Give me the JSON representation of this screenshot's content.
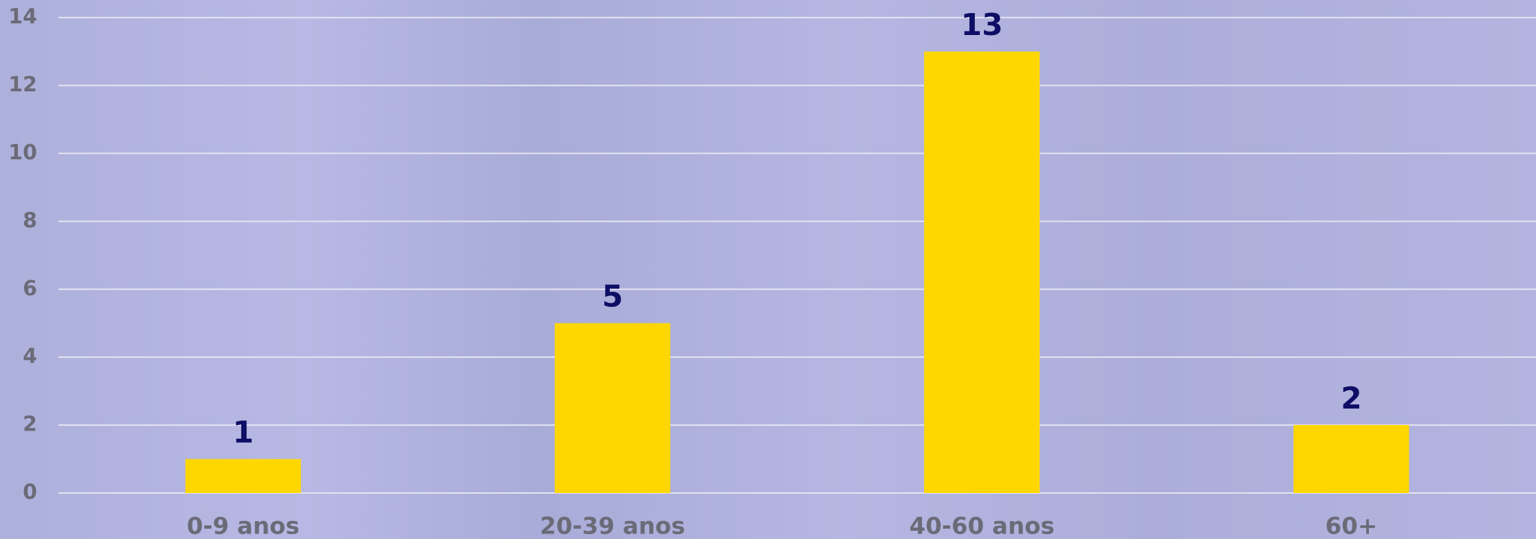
{
  "chart_data": {
    "type": "bar",
    "categories": [
      "0-9 anos",
      "20-39 anos",
      "40-60 anos",
      "60+"
    ],
    "values": [
      1,
      5,
      13,
      2
    ],
    "color": "#ffd700",
    "ylim": [
      0,
      14
    ],
    "yticks": [
      0,
      2,
      4,
      6,
      8,
      10,
      12,
      14
    ],
    "grid": true
  }
}
